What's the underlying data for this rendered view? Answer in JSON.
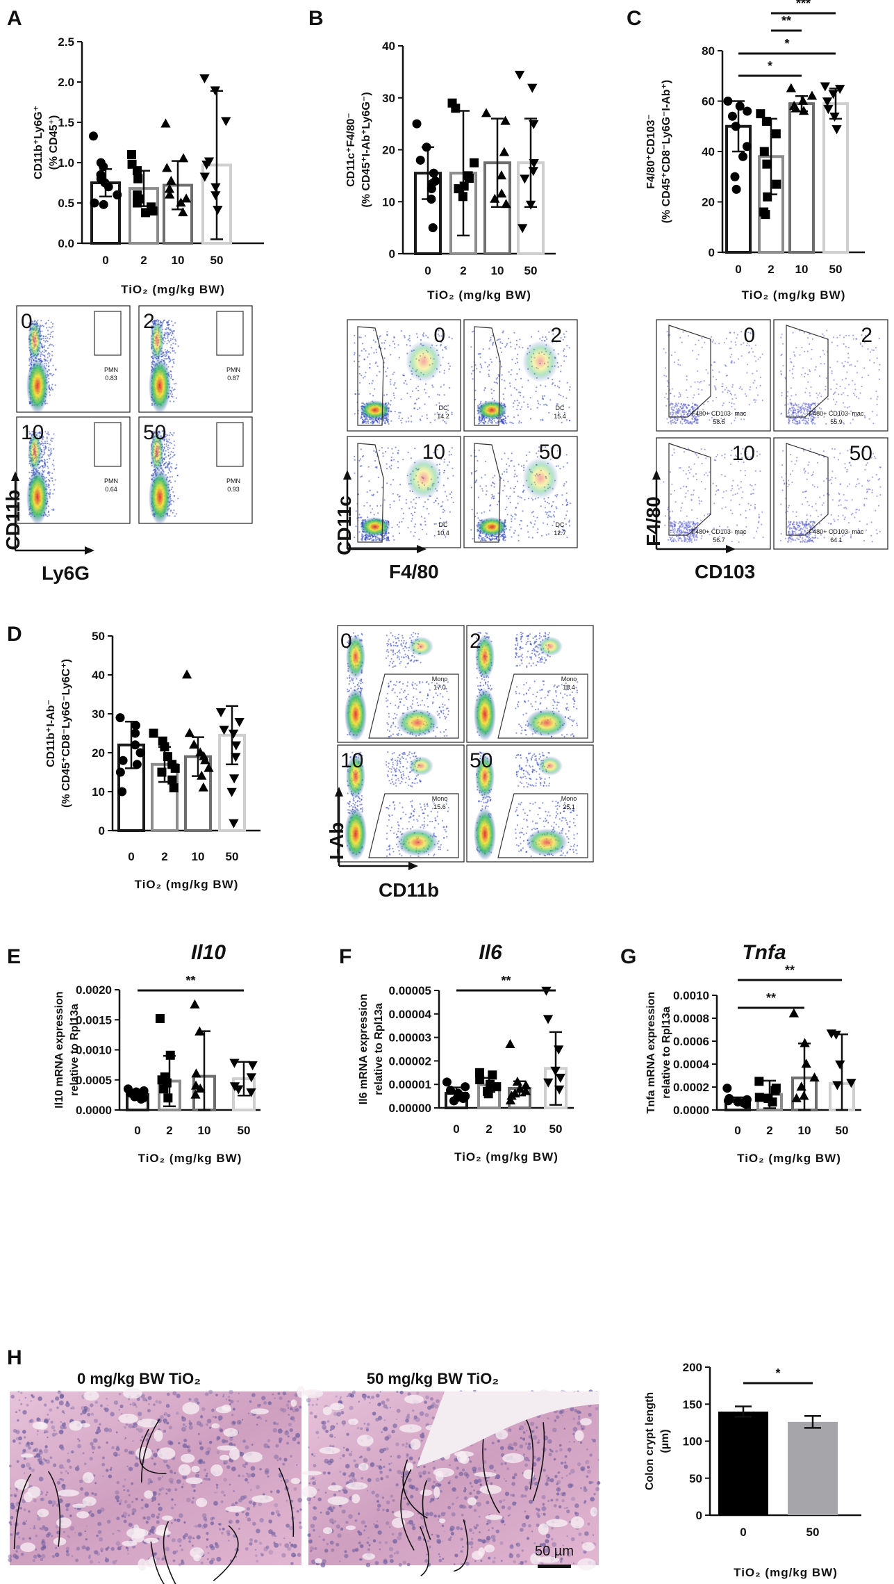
{
  "panel_letters": [
    "A",
    "B",
    "C",
    "D",
    "E",
    "F",
    "G",
    "H"
  ],
  "x_title": "TiO₂ (mg/kg BW)",
  "y_labels": {
    "A": [
      "CD11b⁺Ly6G⁺",
      "(% CD45⁺)"
    ],
    "B": [
      "CD11c⁺F4/80⁻",
      "(% CD45⁺I-Ab⁺Ly6G⁻)"
    ],
    "C": [
      "F4/80⁺CD103⁻",
      "(% CD45⁺CD8⁻Ly6G⁻I-Ab⁺)"
    ],
    "D": [
      "CD11b⁺I-Ab⁻",
      "(% CD45⁺CD8⁻Ly6G⁻Ly6C⁺)"
    ],
    "E": [
      "Il10 mRNA expression",
      "relative to Rpl13a"
    ],
    "F": [
      "Il6 mRNA expression",
      "relative to Rpl13a"
    ],
    "G": [
      "Tnfa mRNA expression",
      "relative to Rpl13a"
    ],
    "H": [
      "Colon crypt length",
      "(µm)"
    ]
  },
  "gene_titles": {
    "E": "Il10",
    "F": "Il6",
    "G": "Tnfa"
  },
  "y_ticks": {
    "A": [
      "0.0",
      "0.5",
      "1.0",
      "1.5",
      "2.0",
      "2.5"
    ],
    "B": [
      "0",
      "10",
      "20",
      "30",
      "40"
    ],
    "C": [
      "0",
      "20",
      "40",
      "60",
      "80"
    ],
    "D": [
      "0",
      "10",
      "20",
      "30",
      "40",
      "50"
    ],
    "E": [
      "0.0000",
      "0.0005",
      "0.0010",
      "0.0015",
      "0.0020"
    ],
    "F": [
      "0.00000",
      "0.00001",
      "0.00002",
      "0.00003",
      "0.00004",
      "0.00005"
    ],
    "G": [
      "0.0000",
      "0.0002",
      "0.0004",
      "0.0006",
      "0.0008",
      "0.0010"
    ],
    "H": [
      "0",
      "50",
      "100",
      "150",
      "200"
    ]
  },
  "flow": {
    "A": {
      "axis_y": "CD11b",
      "axis_x": "Ly6G",
      "gate": "PMN",
      "values": [
        "0.83",
        "0.87",
        "0.64",
        "0.93"
      ]
    },
    "B": {
      "axis_y": "CD11c",
      "axis_x": "F4/80",
      "gate": "DC",
      "values": [
        "14.2",
        "15.4",
        "10.4",
        "12.7"
      ]
    },
    "C": {
      "axis_y": "F4/80",
      "axis_x": "CD103",
      "gate": "F480+ CD103- mac",
      "values": [
        "58.5",
        "55.9",
        "56.7",
        "64.1"
      ]
    },
    "D": {
      "axis_y": "I-Ab",
      "axis_x": "CD11b",
      "gate": "Mono",
      "values": [
        "17.0",
        "18.4",
        "15.6",
        "25.1"
      ]
    }
  },
  "histology": {
    "left_title": "0 mg/kg BW TiO₂",
    "right_title": "50 mg/kg BW TiO₂",
    "scale_bar": "50 µm"
  },
  "colors": {
    "dose_0": "#1a1a1a",
    "dose_2": "#8c8c8c",
    "dose_10": "#6e6e6e",
    "dose_50": "#cfcfcf",
    "bar_black": "#000000",
    "bar_grey": "#a6a6aa",
    "he_pink": "#d9a9c8",
    "he_purple": "#6e5fa0",
    "he_bg": "#f3edf1",
    "flow_blue": "#2a3fbf",
    "flow_green": "#3cbf6a",
    "flow_red": "#e52222",
    "flow_yellow": "#f0e030"
  },
  "chart_data": [
    {
      "id": "A",
      "type": "bar",
      "title": "",
      "categories": [
        "0",
        "2",
        "10",
        "50"
      ],
      "xlabel": "TiO₂ (mg/kg BW)",
      "ylabel": "CD11b⁺Ly6G⁺ (% CD45⁺)",
      "ylim": [
        0,
        2.5
      ],
      "means": [
        0.75,
        0.68,
        0.72,
        0.97
      ],
      "sd": [
        0.17,
        0.22,
        0.3,
        0.92
      ],
      "points": [
        [
          1.33,
          1.0,
          0.95,
          0.85,
          0.8,
          0.75,
          0.7,
          0.6,
          0.5,
          0.48
        ],
        [
          1.1,
          0.98,
          0.9,
          0.8,
          0.6,
          0.55,
          0.5,
          0.45,
          0.4,
          0.38
        ],
        [
          1.48,
          1.05,
          0.93,
          0.77,
          0.67,
          0.6,
          0.55,
          0.5,
          0.38
        ],
        [
          2.05,
          1.9,
          1.52,
          1.02,
          0.98,
          0.83,
          0.7,
          0.6,
          0.42
        ]
      ],
      "sig": []
    },
    {
      "id": "B",
      "type": "bar",
      "title": "",
      "categories": [
        "0",
        "2",
        "10",
        "50"
      ],
      "xlabel": "TiO₂ (mg/kg BW)",
      "ylabel": "CD11c⁺F4/80⁻ (% CD45⁺I-Ab⁺Ly6G⁻)",
      "ylim": [
        0,
        40
      ],
      "means": [
        15.5,
        15.5,
        17.5,
        17.5
      ],
      "sd": [
        5,
        12,
        8.5,
        8.5
      ],
      "points": [
        [
          25,
          20.5,
          18,
          15.5,
          14,
          13.5,
          12.5,
          10.5,
          5
        ],
        [
          29,
          28,
          17.5,
          15,
          14.5,
          13,
          12.5,
          11
        ],
        [
          27,
          25.5,
          19.5,
          15,
          11.5,
          10.5,
          9.5
        ],
        [
          34.5,
          32,
          25,
          17.5,
          16,
          14.5,
          9.5,
          5
        ]
      ],
      "sig": []
    },
    {
      "id": "C",
      "type": "bar",
      "title": "",
      "categories": [
        "0",
        "2",
        "10",
        "50"
      ],
      "xlabel": "TiO₂ (mg/kg BW)",
      "ylabel": "F4/80⁺CD103⁻ (% CD45⁺CD8⁻Ly6G⁻I-Ab⁺)",
      "ylim": [
        0,
        80
      ],
      "means": [
        50,
        38,
        59,
        59
      ],
      "sd": [
        10,
        15,
        3,
        6
      ],
      "points": [
        [
          60,
          58,
          56,
          54,
          50,
          42,
          38,
          30,
          25
        ],
        [
          55,
          52,
          47,
          40,
          35,
          27,
          22,
          16,
          15
        ],
        [
          65,
          62,
          60,
          58,
          57,
          56
        ],
        [
          66,
          65,
          63,
          60,
          57,
          54,
          49
        ]
      ],
      "sig": [
        {
          "from": 0,
          "to": 2,
          "label": "*"
        },
        {
          "from": 0,
          "to": 3,
          "label": "*"
        },
        {
          "from": 1,
          "to": 2,
          "label": "**"
        },
        {
          "from": 1,
          "to": 3,
          "label": "***"
        }
      ]
    },
    {
      "id": "D",
      "type": "bar",
      "title": "",
      "categories": [
        "0",
        "2",
        "10",
        "50"
      ],
      "xlabel": "TiO₂ (mg/kg BW)",
      "ylabel": "CD11b⁺I-Ab⁻ (% CD45⁺CD8⁻Ly6G⁻Ly6C⁺)",
      "ylim": [
        0,
        50
      ],
      "means": [
        22,
        17,
        19,
        24.5
      ],
      "sd": [
        6,
        4.5,
        5,
        7.5
      ],
      "points": [
        [
          29,
          27,
          25,
          22,
          20,
          18,
          17,
          15,
          10
        ],
        [
          25,
          23,
          21.5,
          19,
          17,
          16,
          15,
          13,
          11
        ],
        [
          40,
          25,
          22,
          20,
          19,
          18,
          16,
          14,
          11
        ],
        [
          30.5,
          28,
          26,
          25,
          22,
          19,
          13.5,
          10,
          2
        ]
      ],
      "sig": []
    },
    {
      "id": "E",
      "type": "bar",
      "title": "Il10",
      "categories": [
        "0",
        "2",
        "10",
        "50"
      ],
      "xlabel": "TiO₂ (mg/kg BW)",
      "ylabel": "Il10 mRNA expression relative to Rpl13a",
      "ylim": [
        0,
        0.002
      ],
      "means": [
        0.00026,
        0.00048,
        0.00056,
        0.00052
      ],
      "sd": [
        6e-05,
        0.00042,
        0.00075,
        0.00028
      ],
      "points": [
        [
          0.00035,
          0.00032,
          0.0003,
          0.00028,
          0.00025,
          0.00022,
          0.0002,
          0.00018
        ],
        [
          0.00152,
          0.00091,
          0.00055,
          0.0005,
          0.00045,
          0.00035,
          0.0002
        ],
        [
          0.00175,
          0.0013,
          0.0006,
          0.0004,
          0.00035,
          0.00025
        ],
        [
          0.00079,
          0.00075,
          0.00055,
          0.0004,
          0.00035,
          0.0003
        ]
      ],
      "sig": [
        {
          "from": 0,
          "to": 3,
          "label": "**"
        }
      ]
    },
    {
      "id": "F",
      "type": "bar",
      "title": "Il6",
      "categories": [
        "0",
        "2",
        "10",
        "50"
      ],
      "xlabel": "TiO₂ (mg/kg BW)",
      "ylabel": "Il6 mRNA expression relative to Rpl13a",
      "ylim": [
        0,
        5e-05
      ],
      "means": [
        6.2e-06,
        9.8e-06,
        8.3e-06,
        1.68e-05
      ],
      "sd": [
        2.5e-06,
        3e-06,
        3e-06,
        1.55e-05
      ],
      "points": [
        [
          1.1e-05,
          9e-06,
          7.5e-06,
          6.2e-06,
          5e-06,
          4.5e-06,
          4e-06,
          3e-06
        ],
        [
          1.5e-05,
          1.4e-05,
          1.2e-05,
          1e-05,
          9e-06,
          7e-06,
          6e-06
        ],
        [
          2.7e-05,
          1.1e-05,
          9.5e-06,
          8e-06,
          7e-06,
          6e-06,
          5e-06,
          3e-06
        ],
        [
          5e-05,
          3.8e-05,
          2.5e-05,
          1.6e-05,
          1.3e-05,
          1.1e-05,
          8e-06
        ]
      ],
      "sig": [
        {
          "from": 0,
          "to": 3,
          "label": "**"
        }
      ]
    },
    {
      "id": "G",
      "type": "bar",
      "title": "Tnfa",
      "categories": [
        "0",
        "2",
        "10",
        "50"
      ],
      "xlabel": "TiO₂ (mg/kg BW)",
      "ylabel": "Tnfa mRNA expression relative to Rpl13a",
      "ylim": [
        0,
        0.001
      ],
      "means": [
        9e-05,
        0.000135,
        0.00028,
        0.00023
      ],
      "sd": [
        2e-05,
        0.00012,
        0.0003,
        0.00043
      ],
      "points": [
        [
          0.00019,
          0.0001,
          9e-05,
          8e-05,
          7e-05,
          6e-05,
          5e-05
        ],
        [
          0.00025,
          0.00019,
          0.00017,
          0.00011,
          0.0001,
          7e-05
        ],
        [
          0.00084,
          0.00058,
          0.0004,
          0.00028,
          0.0002,
          0.00012,
          0.0001
        ],
        [
          0.00067,
          0.00066,
          0.0004,
          0.00024,
          0.00022
        ]
      ],
      "sig": [
        {
          "from": 0,
          "to": 2,
          "label": "**"
        },
        {
          "from": 0,
          "to": 3,
          "label": "**"
        }
      ]
    },
    {
      "id": "H",
      "type": "bar",
      "title": "",
      "categories": [
        "0",
        "50"
      ],
      "xlabel": "TiO₂ (mg/kg BW)",
      "ylabel": "Colon crypt length (µm)",
      "ylim": [
        0,
        200
      ],
      "means": [
        140,
        126
      ],
      "sd": [
        7,
        8
      ],
      "points": [],
      "sig": [
        {
          "from": 0,
          "to": 1,
          "label": "*"
        }
      ]
    }
  ]
}
